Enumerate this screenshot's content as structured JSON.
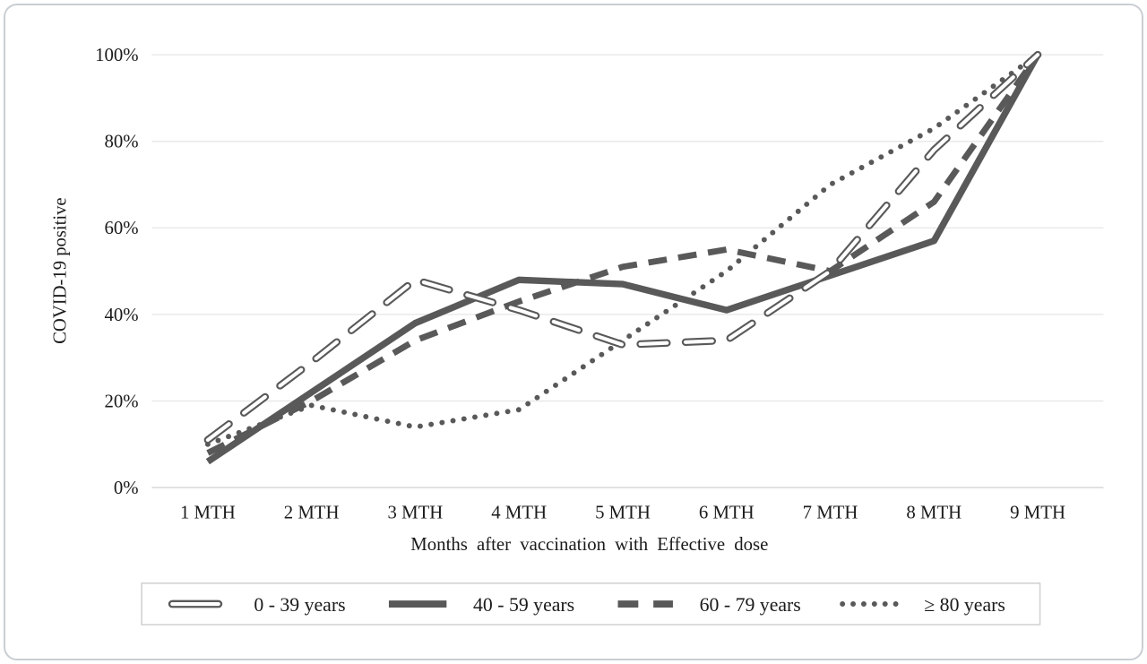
{
  "figure": {
    "background": "#ffffff",
    "card_border_color": "#c9ced3"
  },
  "chart_data": {
    "type": "line",
    "title": "",
    "xlabel": "Months after vaccination with Effective dose",
    "ylabel": "COVID-19 positive",
    "categories": [
      "1 MTH",
      "2 MTH",
      "3 MTH",
      "4 MTH",
      "5 MTH",
      "6 MTH",
      "7 MTH",
      "8 MTH",
      "9 MTH"
    ],
    "y_ticks": [
      "0%",
      "20%",
      "40%",
      "60%",
      "80%",
      "100%"
    ],
    "y_tick_values": [
      0,
      20,
      40,
      60,
      80,
      100
    ],
    "ylim": [
      0,
      100
    ],
    "grid": "horizontal",
    "gridline_color": "#e9e9e9",
    "axis_line_color": "#d8d8d8",
    "line_color": "#595959",
    "legend_position": "bottom",
    "legend_border_color": "#cfcfcf",
    "series": [
      {
        "name": "0 - 39 years",
        "style": "outlined-long-dash",
        "values": [
          11,
          29,
          48,
          41,
          33,
          34,
          50,
          78,
          100
        ]
      },
      {
        "name": "40 - 59 years",
        "style": "solid",
        "values": [
          6,
          22,
          38,
          48,
          47,
          41,
          49,
          57,
          100
        ]
      },
      {
        "name": "60 - 79 years",
        "style": "dashed",
        "values": [
          8,
          20,
          34,
          43,
          51,
          55,
          50,
          66,
          100
        ]
      },
      {
        "name": "≥ 80 years",
        "style": "dotted",
        "values": [
          10,
          19,
          14,
          18,
          34,
          50,
          70,
          83,
          100
        ]
      }
    ]
  }
}
